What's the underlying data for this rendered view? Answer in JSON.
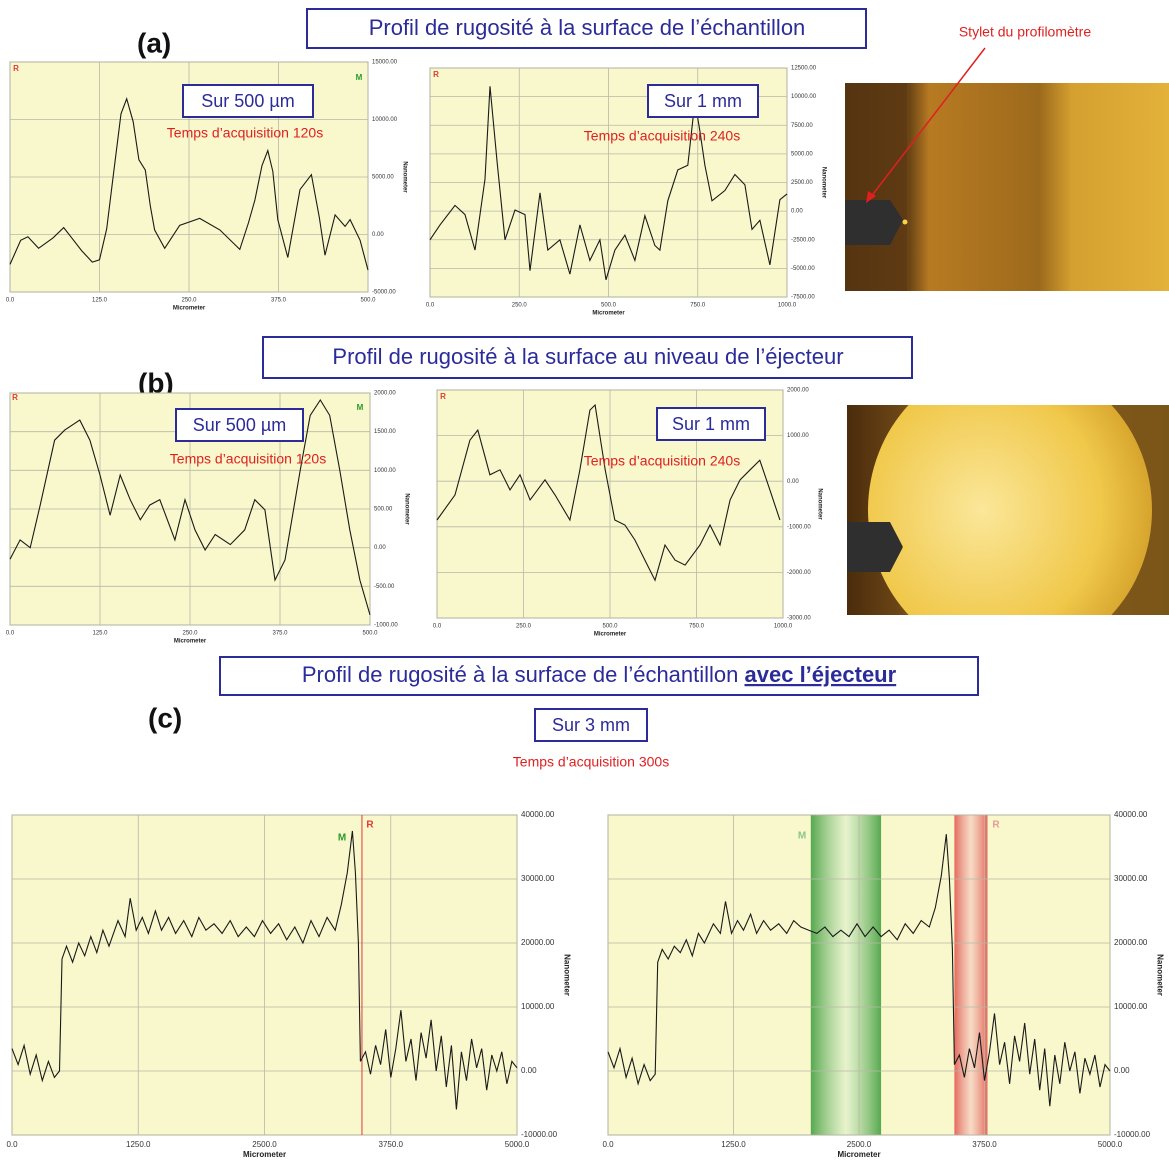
{
  "panels": [
    {
      "label": "(a)",
      "title": "Profil de rugosité à la surface de l’échantillon",
      "photo_label": "Stylet du profilomètre"
    },
    {
      "label": "(b)",
      "title": "Profil de rugosité à la surface au niveau de l’éjecteur"
    },
    {
      "label": "(c)",
      "title": "Profil de rugosité à la surface de l’échantillon ",
      "title_emphasis": "avec l’éjecteur",
      "range_label": "Sur 3 mm",
      "acquisition": "Temps d’acquisition 300s"
    }
  ],
  "chart_data": [
    {
      "type": "line",
      "color": "#1a1a1a",
      "xlabel": "Micrometer",
      "ylabel": "Nanometer",
      "range_label": "Sur 500 µm",
      "acquisition": "Temps d’acquisition 120s",
      "markers": [
        {
          "label": "R",
          "color": "#e03a3a"
        },
        {
          "label": "M",
          "color": "#2a9a2a"
        }
      ],
      "xlim": [
        0,
        500
      ],
      "ylim": [
        -5000,
        15000
      ],
      "xticks": [
        {
          "value": 0,
          "label": "0.0"
        },
        {
          "value": 125,
          "label": "125.0"
        },
        {
          "value": 250,
          "label": "250.0"
        },
        {
          "value": 375,
          "label": "375.0"
        },
        {
          "value": 500,
          "label": "500.0"
        }
      ],
      "yticks": [
        {
          "value": 15000,
          "label": "15000.00"
        },
        {
          "value": 10000,
          "label": "10000.00"
        },
        {
          "value": 5000,
          "label": "5000.00"
        },
        {
          "value": 0,
          "label": "0.00"
        },
        {
          "value": -5000,
          "label": "-5000.00"
        }
      ],
      "x": [
        0,
        15,
        25,
        40,
        60,
        75,
        85,
        100,
        115,
        125,
        135,
        145,
        155,
        163,
        172,
        180,
        189,
        196,
        202,
        216,
        237,
        265,
        293,
        321,
        333,
        342,
        352,
        360,
        367,
        374,
        388,
        405,
        421,
        432,
        440,
        454,
        468,
        475,
        489,
        500
      ],
      "values": [
        -2600,
        -500,
        -200,
        -1200,
        -300,
        600,
        -200,
        -1400,
        -2400,
        -2200,
        500,
        5500,
        10500,
        11800,
        9800,
        6500,
        5600,
        2500,
        400,
        -1200,
        800,
        1400,
        400,
        -1300,
        1000,
        3000,
        6000,
        7300,
        5500,
        1300,
        -2000,
        3900,
        5200,
        1500,
        -1800,
        1700,
        700,
        1300,
        -500,
        -3100
      ]
    },
    {
      "type": "line",
      "color": "#1a1a1a",
      "xlabel": "Micrometer",
      "ylabel": "Nanometer",
      "range_label": "Sur 1 mm",
      "acquisition": "Temps d’acquisition 240s",
      "markers": [
        {
          "label": "R",
          "color": "#e03a3a"
        }
      ],
      "xlim": [
        0,
        1000
      ],
      "ylim": [
        -7500,
        12500
      ],
      "xticks": [
        {
          "value": 0,
          "label": "0.0"
        },
        {
          "value": 250,
          "label": "250.0"
        },
        {
          "value": 500,
          "label": "500.0"
        },
        {
          "value": 750,
          "label": "750.0"
        },
        {
          "value": 1000,
          "label": "1000.0"
        }
      ],
      "yticks": [
        {
          "value": 12500,
          "label": "12500.00"
        },
        {
          "value": 10000,
          "label": "10000.00"
        },
        {
          "value": 7500,
          "label": "7500.00"
        },
        {
          "value": 5000,
          "label": "5000.00"
        },
        {
          "value": 2500,
          "label": "2500.00"
        },
        {
          "value": 0,
          "label": "0.00"
        },
        {
          "value": -2500,
          "label": "-2500.00"
        },
        {
          "value": -5000,
          "label": "-5000.00"
        },
        {
          "value": -7500,
          "label": "-7500.00"
        }
      ],
      "x": [
        0,
        28,
        70,
        98,
        126,
        154,
        168,
        188,
        210,
        238,
        266,
        280,
        308,
        330,
        364,
        392,
        420,
        448,
        476,
        493,
        518,
        546,
        574,
        602,
        630,
        644,
        666,
        694,
        722,
        742,
        756,
        770,
        790,
        826,
        854,
        882,
        902,
        924,
        952,
        980,
        1000
      ],
      "values": [
        -2500,
        -1200,
        500,
        -300,
        -3400,
        2800,
        10900,
        4300,
        -2500,
        100,
        -300,
        -5200,
        1600,
        -3400,
        -2500,
        -5500,
        -1200,
        -4300,
        -2500,
        -6000,
        -3400,
        -2100,
        -4300,
        -400,
        -3000,
        -3400,
        900,
        3600,
        4000,
        9600,
        7000,
        4000,
        900,
        1800,
        3200,
        2300,
        -1600,
        -800,
        -4700,
        1000,
        1500
      ]
    },
    {
      "type": "line",
      "color": "#1a1a1a",
      "xlabel": "Micrometer",
      "ylabel": "Nanometer",
      "range_label": "Sur 500 µm",
      "acquisition": "Temps d’acquisition 120s",
      "markers": [
        {
          "label": "R",
          "color": "#e03a3a"
        },
        {
          "label": "M",
          "color": "#2a9a2a"
        }
      ],
      "xlim": [
        0,
        500
      ],
      "ylim": [
        -1000,
        2000
      ],
      "xticks": [
        {
          "value": 0,
          "label": "0.0"
        },
        {
          "value": 125,
          "label": "125.0"
        },
        {
          "value": 250,
          "label": "250.0"
        },
        {
          "value": 375,
          "label": "375.0"
        },
        {
          "value": 500,
          "label": "500.0"
        }
      ],
      "yticks": [
        {
          "value": 2000,
          "label": "2000.00"
        },
        {
          "value": 1500,
          "label": "1500.00"
        },
        {
          "value": 1000,
          "label": "1000.00"
        },
        {
          "value": 500,
          "label": "500.00"
        },
        {
          "value": 0,
          "label": "0.00"
        },
        {
          "value": -500,
          "label": "-500.00"
        },
        {
          "value": -1000,
          "label": "-1000.00"
        }
      ],
      "x": [
        0,
        14,
        28,
        42,
        62,
        76,
        97,
        111,
        125,
        139,
        153,
        167,
        181,
        194,
        208,
        229,
        243,
        257,
        271,
        285,
        306,
        326,
        340,
        354,
        368,
        382,
        403,
        417,
        431,
        444,
        458,
        472,
        486,
        500
      ],
      "values": [
        -150,
        100,
        0,
        550,
        1390,
        1520,
        1650,
        1390,
        940,
        420,
        940,
        620,
        360,
        550,
        620,
        100,
        620,
        230,
        -30,
        170,
        40,
        230,
        620,
        490,
        -420,
        -160,
        1000,
        1710,
        1910,
        1710,
        1000,
        230,
        -420,
        -870
      ]
    },
    {
      "type": "line",
      "color": "#1a1a1a",
      "xlabel": "Micrometer",
      "ylabel": "Nanometer",
      "range_label": "Sur 1 mm",
      "acquisition": "Temps d’acquisition 240s",
      "markers": [
        {
          "label": "R",
          "color": "#e03a3a"
        }
      ],
      "xlim": [
        0,
        1000
      ],
      "ylim": [
        -3000,
        2000
      ],
      "xticks": [
        {
          "value": 0,
          "label": "0.0"
        },
        {
          "value": 250,
          "label": "250.0"
        },
        {
          "value": 500,
          "label": "500.0"
        },
        {
          "value": 750,
          "label": "750.0"
        },
        {
          "value": 1000,
          "label": "1000.0"
        }
      ],
      "yticks": [
        {
          "value": 2000,
          "label": "2000.00"
        },
        {
          "value": 1000,
          "label": "1000.00"
        },
        {
          "value": 0,
          "label": "0.00"
        },
        {
          "value": -1000,
          "label": "-1000.00"
        },
        {
          "value": -2000,
          "label": "-2000.00"
        },
        {
          "value": -3000,
          "label": "-3000.00"
        }
      ],
      "x": [
        0,
        52,
        95,
        118,
        153,
        182,
        211,
        240,
        269,
        312,
        341,
        384,
        413,
        442,
        457,
        486,
        514,
        543,
        572,
        601,
        630,
        659,
        688,
        717,
        760,
        789,
        818,
        847,
        876,
        905,
        933,
        962,
        991
      ],
      "values": [
        -850,
        -300,
        900,
        1120,
        140,
        250,
        -190,
        140,
        -410,
        30,
        -300,
        -850,
        250,
        1560,
        1670,
        250,
        -850,
        -960,
        -1290,
        -1730,
        -2170,
        -1400,
        -1730,
        -1840,
        -1400,
        -960,
        -1400,
        -410,
        30,
        250,
        460,
        -190,
        -850
      ]
    },
    {
      "type": "line",
      "color": "#1a1a1a",
      "xlabel": "Micrometer",
      "ylabel": "Nanometer",
      "markers": [
        {
          "label": "M",
          "color": "#2a9a2a"
        },
        {
          "label": "R",
          "color": "#e03a3a"
        }
      ],
      "xlim": [
        0,
        5000
      ],
      "ylim": [
        -10000,
        40000
      ],
      "xticks": [
        {
          "value": 0,
          "label": "0.0"
        },
        {
          "value": 1250,
          "label": "1250.0"
        },
        {
          "value": 2500,
          "label": "2500.0"
        },
        {
          "value": 3750,
          "label": "3750.0"
        },
        {
          "value": 5000,
          "label": "5000.0"
        }
      ],
      "yticks": [
        {
          "value": 40000,
          "label": "40000.00"
        },
        {
          "value": 30000,
          "label": "30000.00"
        },
        {
          "value": 20000,
          "label": "20000.00"
        },
        {
          "value": 10000,
          "label": "10000.00"
        },
        {
          "value": 0,
          "label": "0.00"
        },
        {
          "value": -10000,
          "label": "-10000.00"
        }
      ],
      "x": [
        0,
        60,
        120,
        180,
        240,
        300,
        360,
        420,
        470,
        495,
        540,
        600,
        660,
        720,
        780,
        840,
        900,
        960,
        1050,
        1120,
        1170,
        1230,
        1290,
        1350,
        1420,
        1480,
        1550,
        1620,
        1700,
        1780,
        1850,
        1920,
        2000,
        2080,
        2160,
        2240,
        2320,
        2400,
        2480,
        2560,
        2640,
        2720,
        2800,
        2880,
        2960,
        3040,
        3120,
        3200,
        3260,
        3320,
        3370,
        3400,
        3430,
        3450,
        3500,
        3550,
        3600,
        3650,
        3700,
        3750,
        3800,
        3850,
        3900,
        3950,
        4000,
        4050,
        4100,
        4150,
        4200,
        4250,
        4300,
        4350,
        4400,
        4450,
        4500,
        4550,
        4600,
        4650,
        4700,
        4750,
        4800,
        4850,
        4900,
        4950,
        5000
      ],
      "values": [
        3500,
        1000,
        4000,
        -500,
        2500,
        -1500,
        1500,
        -1000,
        0,
        17500,
        19500,
        17000,
        20000,
        18000,
        21000,
        18500,
        22000,
        19500,
        23500,
        21000,
        27000,
        22000,
        24000,
        21500,
        25000,
        22000,
        24000,
        21500,
        23500,
        21000,
        24000,
        22000,
        23000,
        21500,
        23500,
        21000,
        22500,
        21000,
        23500,
        21500,
        23000,
        20500,
        22500,
        20000,
        23500,
        21000,
        24000,
        22000,
        26000,
        31000,
        37500,
        31000,
        20000,
        1500,
        3000,
        -500,
        4000,
        1000,
        6500,
        -1000,
        3500,
        9500,
        1500,
        5000,
        -1500,
        6000,
        2000,
        8000,
        0,
        5500,
        -2500,
        4000,
        -6000,
        3000,
        -1500,
        5000,
        500,
        3500,
        -3000,
        2500,
        0,
        3000,
        -2000,
        1500,
        500
      ]
    },
    {
      "type": "line",
      "color": "#1a1a1a",
      "xlabel": "Micrometer",
      "ylabel": "Nanometer",
      "markers": [
        {
          "label": "M",
          "color": "#8cc48c"
        },
        {
          "label": "R",
          "color": "#e89a9a"
        }
      ],
      "xlim": [
        0,
        5000
      ],
      "ylim": [
        -10000,
        40000
      ],
      "xticks": [
        {
          "value": 0,
          "label": "0.0"
        },
        {
          "value": 1250,
          "label": "1250.0"
        },
        {
          "value": 2500,
          "label": "2500.0"
        },
        {
          "value": 3750,
          "label": "3750.0"
        },
        {
          "value": 5000,
          "label": "5000.0"
        }
      ],
      "yticks": [
        {
          "value": 40000,
          "label": "40000.00"
        },
        {
          "value": 30000,
          "label": "30000.00"
        },
        {
          "value": 20000,
          "label": "20000.00"
        },
        {
          "value": 10000,
          "label": "10000.00"
        },
        {
          "value": 0,
          "label": "0.00"
        },
        {
          "value": -10000,
          "label": "-10000.00"
        }
      ],
      "x": [
        0,
        60,
        120,
        180,
        240,
        300,
        360,
        420,
        470,
        495,
        540,
        600,
        660,
        720,
        780,
        840,
        900,
        960,
        1050,
        1120,
        1170,
        1230,
        1290,
        1350,
        1420,
        1480,
        1550,
        1620,
        1700,
        1780,
        1850,
        1920,
        2000,
        2080,
        2160,
        2240,
        2320,
        2400,
        2480,
        2560,
        2640,
        2720,
        2800,
        2880,
        2960,
        3040,
        3120,
        3200,
        3260,
        3320,
        3370,
        3400,
        3430,
        3450,
        3500,
        3550,
        3600,
        3650,
        3700,
        3750,
        3800,
        3850,
        3900,
        3950,
        4000,
        4050,
        4100,
        4150,
        4200,
        4250,
        4300,
        4350,
        4400,
        4450,
        4500,
        4550,
        4600,
        4650,
        4700,
        4750,
        4800,
        4850,
        4900,
        4950,
        5000
      ],
      "values": [
        3000,
        500,
        3500,
        -1000,
        2000,
        -2000,
        1000,
        -1500,
        -500,
        17000,
        19000,
        17500,
        19500,
        18500,
        20500,
        18000,
        21500,
        20000,
        23000,
        21500,
        26500,
        21500,
        23500,
        22000,
        24500,
        21500,
        23500,
        22000,
        23000,
        21500,
        23500,
        22500,
        22000,
        21500,
        22500,
        21000,
        22000,
        21000,
        23000,
        21000,
        22500,
        21000,
        22000,
        20500,
        23000,
        21500,
        23500,
        22500,
        25500,
        30500,
        37000,
        30000,
        19000,
        1000,
        2500,
        -1000,
        3500,
        500,
        6000,
        -1500,
        3000,
        9000,
        1000,
        4500,
        -2000,
        5500,
        1500,
        7500,
        -500,
        5000,
        -3000,
        3500,
        -5500,
        2500,
        -2000,
        4500,
        0,
        3000,
        -3500,
        2000,
        -500,
        2500,
        -2500,
        1000,
        0
      ]
    }
  ]
}
